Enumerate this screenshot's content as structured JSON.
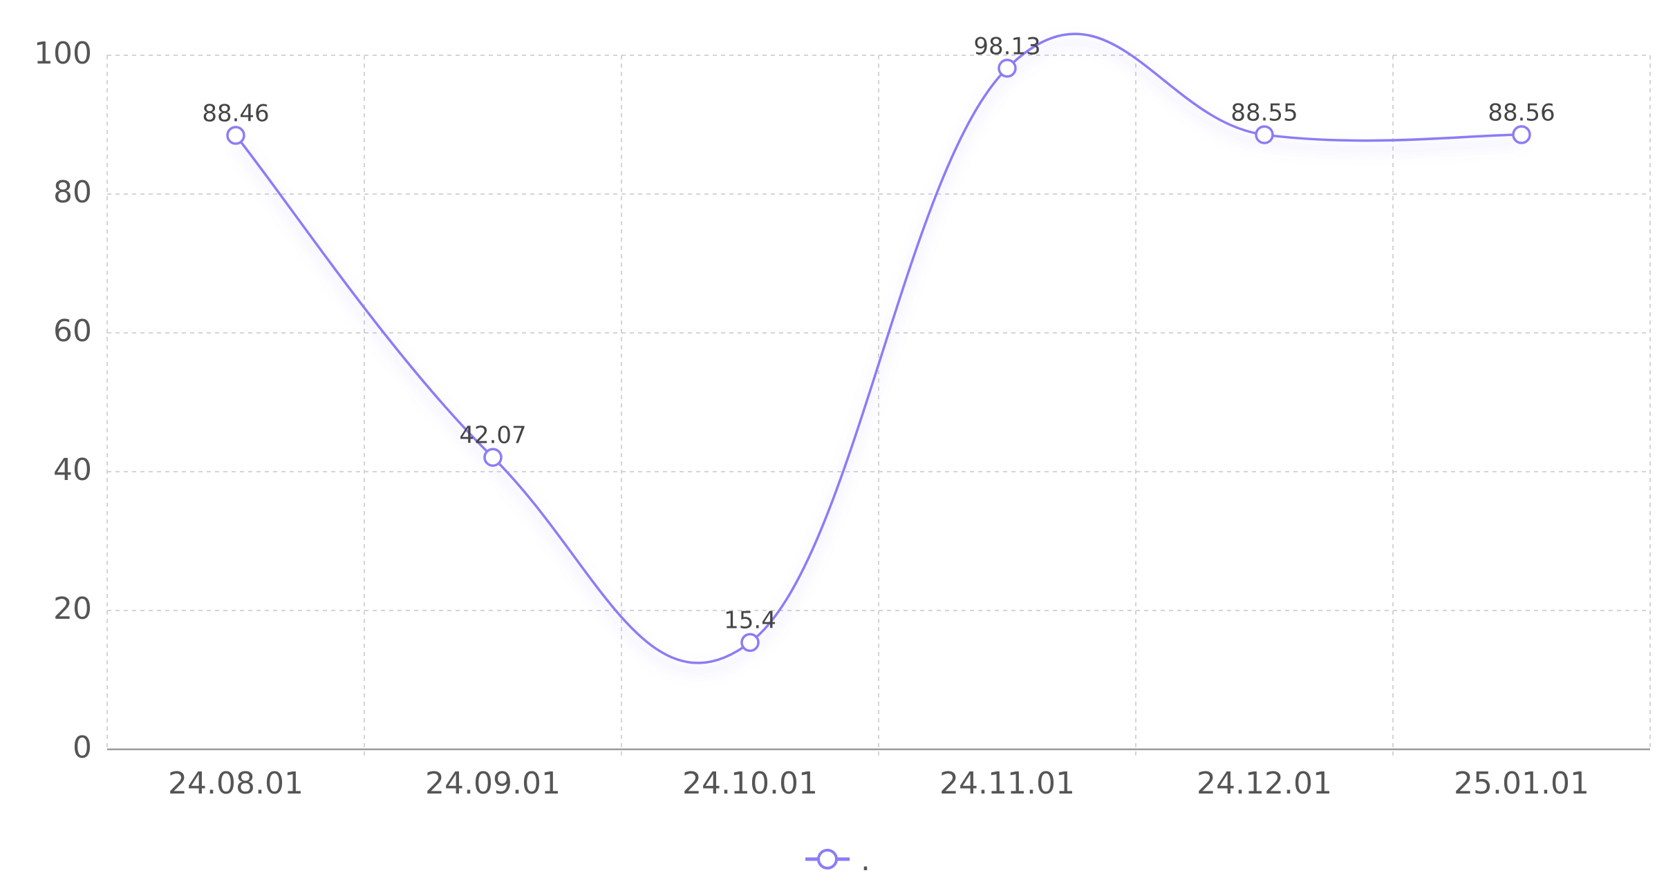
{
  "chart_data": {
    "type": "line",
    "categories": [
      "24.08.01",
      "24.09.01",
      "24.10.01",
      "24.11.01",
      "24.12.01",
      "25.01.01"
    ],
    "series": [
      {
        "name": ".",
        "color": "#8b7cf6",
        "values": [
          88.46,
          42.07,
          15.4,
          98.13,
          88.55,
          88.56
        ]
      }
    ],
    "ylim": [
      0,
      100
    ],
    "yticks": [
      0,
      20,
      40,
      60,
      80,
      100
    ],
    "grid": true,
    "smooth": true,
    "legend": "bottom"
  }
}
